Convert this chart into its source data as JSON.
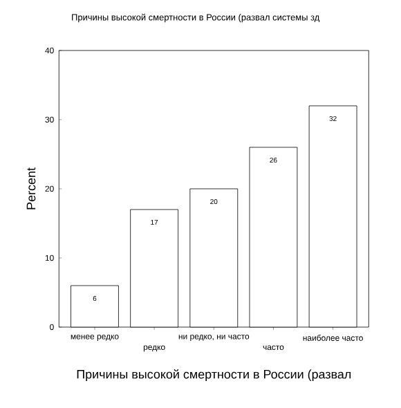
{
  "chart_data": {
    "type": "bar",
    "title": "Причины высокой смертности в России (развал системы зд",
    "xlabel": "Причины высокой смертности в России (развал",
    "ylabel": "Percent",
    "categories": [
      "менее редко",
      "редко",
      "ни редко, ни часто",
      "часто",
      "наиболее часто"
    ],
    "values": [
      6,
      17,
      20,
      26,
      32
    ],
    "color": "#ffffff",
    "ylim": [
      0,
      40
    ],
    "yticks": [
      0,
      10,
      20,
      30,
      40
    ],
    "data_labels": true,
    "grid": false
  }
}
